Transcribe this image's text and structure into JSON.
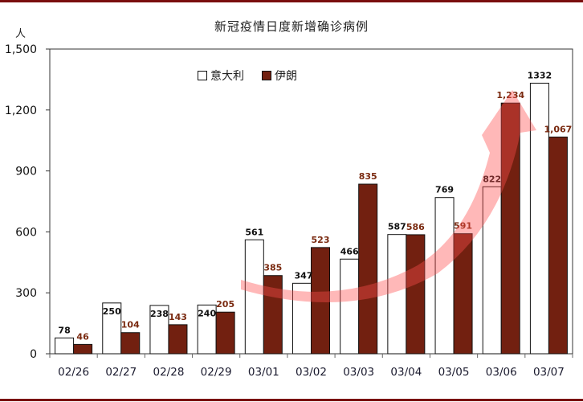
{
  "chart_data": {
    "type": "bar",
    "title": "新冠疫情日度新增确诊病例",
    "ylabel": "人",
    "xlabel": "",
    "ylim": [
      0,
      1500
    ],
    "yticks": [
      "0",
      "300",
      "600",
      "900",
      "1,200",
      "1,500"
    ],
    "categories": [
      "02/26",
      "02/27",
      "02/28",
      "02/29",
      "03/01",
      "03/02",
      "03/03",
      "03/04",
      "03/05",
      "03/06",
      "03/07"
    ],
    "series": [
      {
        "name": "意大利",
        "color": "#ffffff",
        "values": [
          78,
          250,
          238,
          240,
          561,
          347,
          466,
          587,
          769,
          822,
          1332
        ],
        "labels": [
          "78",
          "250",
          "238",
          "240",
          "561",
          "347",
          "466",
          "587",
          "769",
          "822",
          "1332"
        ]
      },
      {
        "name": "伊朗",
        "color": "#722010",
        "values": [
          46,
          104,
          143,
          205,
          385,
          523,
          835,
          586,
          591,
          1234,
          1067
        ],
        "labels": [
          "46",
          "104",
          "143",
          "205",
          "385",
          "523",
          "835",
          "586",
          "591",
          "1,234",
          "1,067"
        ]
      }
    ],
    "legend_position": "top-left inside",
    "grid": false,
    "annotations": [
      "upward curved red arrow indicating rising trend"
    ]
  },
  "colors": {
    "border": "#7a0e0e",
    "iran_bar": "#722010",
    "italy_bar": "#ffffff",
    "arrow": "#ff6b6b"
  }
}
